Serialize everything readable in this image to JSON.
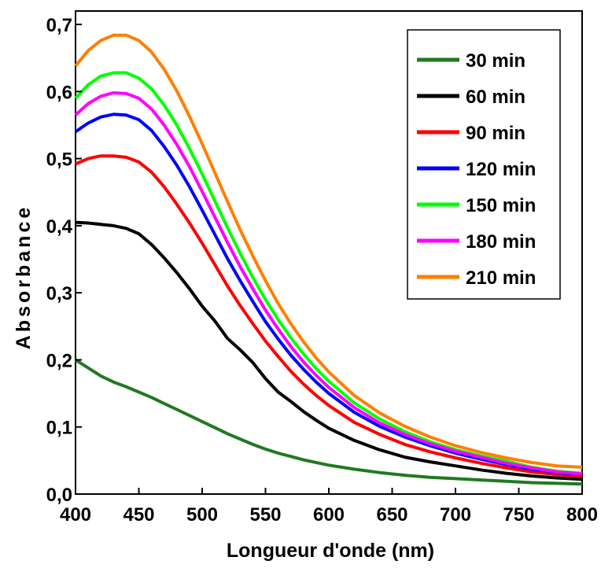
{
  "chart_data": {
    "type": "line",
    "xlabel": "Longueur d'onde (nm)",
    "ylabel": "Absorbance",
    "xlim": [
      400,
      800
    ],
    "ylim": [
      0.0,
      0.72
    ],
    "xticks": [
      400,
      450,
      500,
      550,
      600,
      650,
      700,
      750,
      800
    ],
    "yticks": [
      0.0,
      0.1,
      0.2,
      0.3,
      0.4,
      0.5,
      0.6,
      0.7
    ],
    "xtick_labels": [
      "400",
      "450",
      "500",
      "550",
      "600",
      "650",
      "700",
      "750",
      "800"
    ],
    "ytick_labels": [
      "0,0",
      "0,1",
      "0,2",
      "0,3",
      "0,4",
      "0,5",
      "0,6",
      "0,7"
    ],
    "grid": false,
    "legend_position": "top-right",
    "x": [
      400,
      410,
      420,
      430,
      440,
      450,
      460,
      470,
      480,
      490,
      500,
      510,
      520,
      530,
      540,
      550,
      560,
      570,
      580,
      590,
      600,
      620,
      640,
      660,
      680,
      700,
      720,
      740,
      760,
      780,
      800
    ],
    "series": [
      {
        "name": "30 min",
        "color": "#1f7a1f",
        "values": [
          0.2,
          0.188,
          0.176,
          0.167,
          0.16,
          0.152,
          0.144,
          0.135,
          0.126,
          0.117,
          0.108,
          0.099,
          0.09,
          0.082,
          0.074,
          0.067,
          0.061,
          0.056,
          0.051,
          0.047,
          0.043,
          0.037,
          0.032,
          0.028,
          0.025,
          0.023,
          0.021,
          0.019,
          0.017,
          0.016,
          0.015
        ]
      },
      {
        "name": "60 min",
        "color": "#000000",
        "values": [
          0.405,
          0.404,
          0.402,
          0.4,
          0.396,
          0.388,
          0.372,
          0.352,
          0.33,
          0.306,
          0.28,
          0.258,
          0.232,
          0.215,
          0.196,
          0.172,
          0.152,
          0.138,
          0.123,
          0.11,
          0.098,
          0.08,
          0.066,
          0.055,
          0.048,
          0.042,
          0.036,
          0.031,
          0.027,
          0.024,
          0.022
        ]
      },
      {
        "name": "90 min",
        "color": "#ff0000",
        "values": [
          0.492,
          0.5,
          0.504,
          0.504,
          0.502,
          0.495,
          0.48,
          0.458,
          0.432,
          0.404,
          0.374,
          0.342,
          0.31,
          0.281,
          0.254,
          0.228,
          0.205,
          0.183,
          0.164,
          0.147,
          0.132,
          0.107,
          0.089,
          0.074,
          0.063,
          0.054,
          0.046,
          0.039,
          0.033,
          0.029,
          0.026
        ]
      },
      {
        "name": "120 min",
        "color": "#0000ff",
        "values": [
          0.54,
          0.553,
          0.562,
          0.566,
          0.565,
          0.558,
          0.542,
          0.518,
          0.49,
          0.458,
          0.423,
          0.387,
          0.351,
          0.318,
          0.287,
          0.257,
          0.231,
          0.207,
          0.186,
          0.167,
          0.15,
          0.122,
          0.101,
          0.085,
          0.072,
          0.061,
          0.052,
          0.044,
          0.037,
          0.032,
          0.029
        ]
      },
      {
        "name": "150 min",
        "color": "#00ff00",
        "values": [
          0.59,
          0.61,
          0.623,
          0.628,
          0.628,
          0.62,
          0.604,
          0.58,
          0.55,
          0.515,
          0.477,
          0.437,
          0.397,
          0.359,
          0.323,
          0.29,
          0.26,
          0.233,
          0.209,
          0.187,
          0.168,
          0.136,
          0.112,
          0.093,
          0.078,
          0.066,
          0.057,
          0.049,
          0.04,
          0.034,
          0.031
        ]
      },
      {
        "name": "180 min",
        "color": "#ff00ff",
        "values": [
          0.565,
          0.582,
          0.593,
          0.598,
          0.597,
          0.59,
          0.574,
          0.55,
          0.521,
          0.488,
          0.451,
          0.413,
          0.375,
          0.339,
          0.306,
          0.274,
          0.246,
          0.22,
          0.197,
          0.177,
          0.159,
          0.129,
          0.106,
          0.089,
          0.075,
          0.064,
          0.055,
          0.046,
          0.039,
          0.033,
          0.03
        ]
      },
      {
        "name": "210 min",
        "color": "#ff7f00",
        "values": [
          0.638,
          0.661,
          0.676,
          0.684,
          0.684,
          0.676,
          0.659,
          0.633,
          0.601,
          0.563,
          0.522,
          0.479,
          0.436,
          0.394,
          0.355,
          0.318,
          0.284,
          0.254,
          0.227,
          0.203,
          0.182,
          0.147,
          0.121,
          0.101,
          0.085,
          0.072,
          0.062,
          0.054,
          0.047,
          0.042,
          0.04
        ]
      }
    ]
  }
}
